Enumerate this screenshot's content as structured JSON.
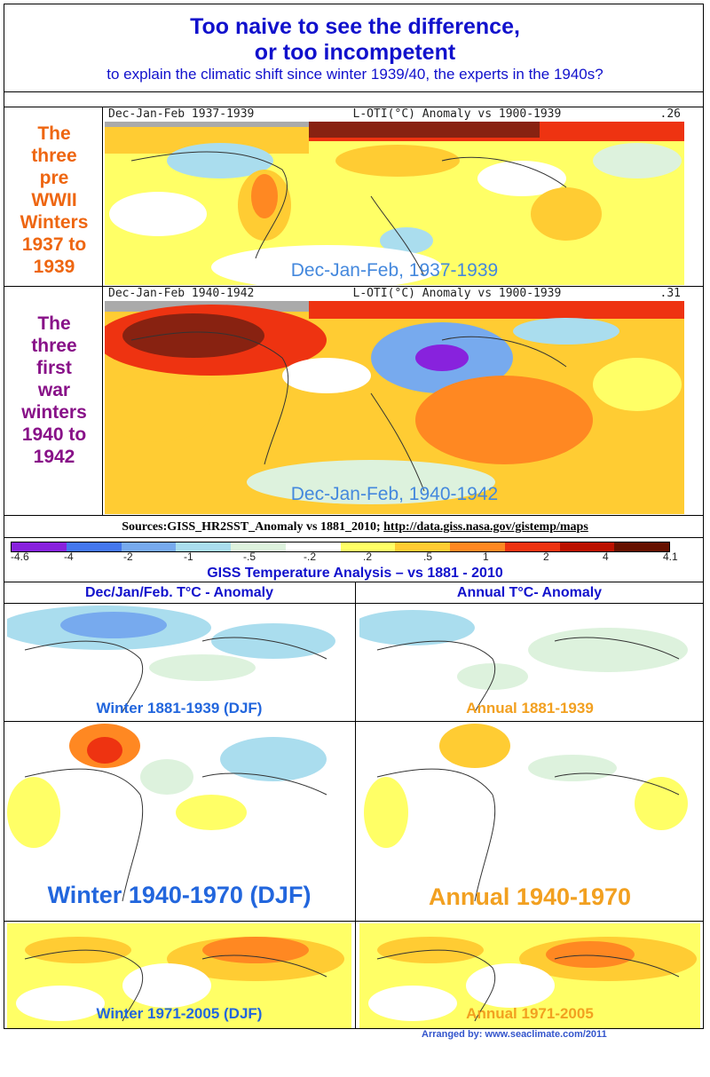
{
  "header": {
    "title_line1": "Too naive to see the difference,",
    "title_line2": "or too incompetent",
    "subtitle": "to explain the climatic shift since winter 1939/40, the experts in the 1940s?"
  },
  "panel1": {
    "side_label": [
      "The",
      "three",
      "pre",
      "WWII",
      "Winters",
      "1937 to",
      "1939"
    ],
    "side_color": "#ee6611",
    "hdr_left": "Dec-Jan-Feb 1937-1939",
    "hdr_mid": "L-OTI(°C) Anomaly vs 1900-1939",
    "hdr_right": ".26",
    "caption": "Dec-Jan-Feb, 1937-1939"
  },
  "panel2": {
    "side_label": [
      "The",
      "three",
      "first",
      "war",
      "winters",
      "1940 to",
      "1942"
    ],
    "side_color": "#881188",
    "hdr_left": "Dec-Jan-Feb 1940-1942",
    "hdr_mid": "L-OTI(°C) Anomaly vs 1900-1939",
    "hdr_right": ".31",
    "caption": "Dec-Jan-Feb, 1940-1942"
  },
  "sources": {
    "prefix": "Sources:GISS_HR2SST_Anomaly vs 1881_2010; ",
    "url": "http://data.giss.nasa.gov/gistemp/maps"
  },
  "legend": {
    "colors": [
      "#8822dd",
      "#4477ee",
      "#77aaee",
      "#aaddee",
      "#ddf2dd",
      "#ffffff",
      "#ffff66",
      "#ffcc33",
      "#ff8822",
      "#ee3311",
      "#bb1100",
      "#661100"
    ],
    "ticks": [
      "-4.6",
      "-4",
      "-2",
      "-1",
      "-.5",
      "-.2",
      ".2",
      ".5",
      "1",
      "2",
      "4",
      "4.1"
    ]
  },
  "section": {
    "title": "GISS Temperature Analysis – vs 1881 - 2010",
    "col_left": "Dec/Jan/Feb. T°C - Anomaly",
    "col_right": "Annual T°C- Anomaly"
  },
  "grid_captions": {
    "w1": "Winter 1881-1939 (DJF)",
    "a1": "Annual 1881-1939",
    "w2": "Winter 1940-1970 (DJF)",
    "a2": "Annual 1940-1970",
    "w3": "Winter 1971-2005 (DJF)",
    "a3": "Annual 1971-2005"
  },
  "caption_colors": {
    "winter": "#2266dd",
    "annual": "#f2a020"
  },
  "footer": "Arranged by: www.seaclimate.com/2011"
}
